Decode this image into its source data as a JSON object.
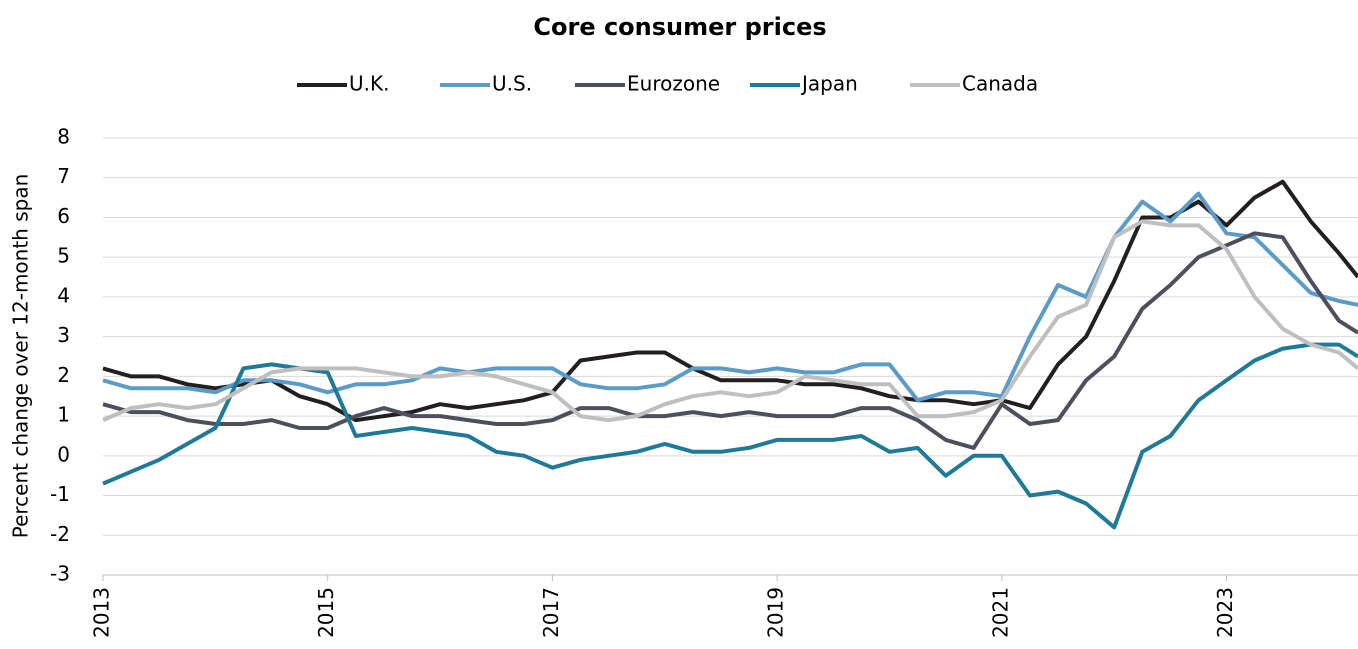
{
  "chart_data": {
    "type": "line",
    "title": "Core consumer prices",
    "y_label": "Percent change over 12-month span",
    "x": [
      2013,
      2013.25,
      2013.5,
      2013.75,
      2014,
      2014.25,
      2014.5,
      2014.75,
      2015,
      2015.25,
      2015.5,
      2015.75,
      2016,
      2016.25,
      2016.5,
      2016.75,
      2017,
      2017.25,
      2017.5,
      2017.75,
      2018,
      2018.25,
      2018.5,
      2018.75,
      2019,
      2019.25,
      2019.5,
      2019.75,
      2020,
      2020.25,
      2020.5,
      2020.75,
      2021,
      2021.25,
      2021.5,
      2021.75,
      2022,
      2022.25,
      2022.5,
      2022.75,
      2023,
      2023.25,
      2023.5,
      2023.75,
      2024,
      2024.17
    ],
    "series": [
      {
        "name": "U.K.",
        "color": "#231f20",
        "values": [
          2.2,
          2.0,
          2.0,
          1.8,
          1.7,
          1.8,
          1.9,
          1.5,
          1.3,
          0.9,
          1.0,
          1.1,
          1.3,
          1.2,
          1.3,
          1.4,
          1.6,
          2.4,
          2.5,
          2.6,
          2.6,
          2.2,
          1.9,
          1.9,
          1.9,
          1.8,
          1.8,
          1.7,
          1.5,
          1.4,
          1.4,
          1.3,
          1.4,
          1.2,
          2.3,
          3.0,
          4.4,
          6.0,
          6.0,
          6.4,
          5.8,
          6.5,
          6.9,
          5.9,
          5.1,
          4.5
        ]
      },
      {
        "name": "U.S.",
        "color": "#5b9bc8",
        "values": [
          1.9,
          1.7,
          1.7,
          1.7,
          1.6,
          1.9,
          1.9,
          1.8,
          1.6,
          1.8,
          1.8,
          1.9,
          2.2,
          2.1,
          2.2,
          2.2,
          2.2,
          1.8,
          1.7,
          1.7,
          1.8,
          2.2,
          2.2,
          2.1,
          2.2,
          2.1,
          2.1,
          2.3,
          2.3,
          1.4,
          1.6,
          1.6,
          1.5,
          3.0,
          4.3,
          4.0,
          5.5,
          6.4,
          5.9,
          6.6,
          5.6,
          5.5,
          4.8,
          4.1,
          3.9,
          3.8
        ]
      },
      {
        "name": "Eurozone",
        "color": "#4d4f5c",
        "values": [
          1.3,
          1.1,
          1.1,
          0.9,
          0.8,
          0.8,
          0.9,
          0.7,
          0.7,
          1.0,
          1.2,
          1.0,
          1.0,
          0.9,
          0.8,
          0.8,
          0.9,
          1.2,
          1.2,
          1.0,
          1.0,
          1.1,
          1.0,
          1.1,
          1.0,
          1.0,
          1.0,
          1.2,
          1.2,
          0.9,
          0.4,
          0.2,
          1.3,
          0.8,
          0.9,
          1.9,
          2.5,
          3.7,
          4.3,
          5.0,
          5.3,
          5.6,
          5.5,
          4.4,
          3.4,
          3.1
        ]
      },
      {
        "name": "Japan",
        "color": "#1f7a99",
        "values": [
          -0.7,
          -0.4,
          -0.1,
          0.3,
          0.7,
          2.2,
          2.3,
          2.2,
          2.1,
          0.5,
          0.6,
          0.7,
          0.6,
          0.5,
          0.1,
          0.0,
          -0.3,
          -0.1,
          0.0,
          0.1,
          0.3,
          0.1,
          0.1,
          0.2,
          0.4,
          0.4,
          0.4,
          0.5,
          0.1,
          0.2,
          -0.5,
          0.0,
          0.0,
          -1.0,
          -0.9,
          -1.2,
          -1.8,
          0.1,
          0.5,
          1.4,
          1.9,
          2.4,
          2.7,
          2.8,
          2.8,
          2.5
        ]
      },
      {
        "name": "Canada",
        "color": "#bfbfbf",
        "values": [
          0.9,
          1.2,
          1.3,
          1.2,
          1.3,
          1.7,
          2.1,
          2.2,
          2.2,
          2.2,
          2.1,
          2.0,
          2.0,
          2.1,
          2.0,
          1.8,
          1.6,
          1.0,
          0.9,
          1.0,
          1.3,
          1.5,
          1.6,
          1.5,
          1.6,
          2.0,
          1.9,
          1.8,
          1.8,
          1.0,
          1.0,
          1.1,
          1.4,
          2.5,
          3.5,
          3.8,
          5.5,
          5.9,
          5.8,
          5.8,
          5.2,
          4.0,
          3.2,
          2.8,
          2.6,
          2.2
        ]
      }
    ],
    "xlim": [
      2013,
      2024.17
    ],
    "xticks": [
      2013,
      2015,
      2017,
      2019,
      2021,
      2023
    ],
    "ylim": [
      -3,
      8
    ],
    "yticks": [
      -3,
      -2,
      -1,
      0,
      1,
      2,
      3,
      4,
      5,
      6,
      7,
      8
    ],
    "grid": true,
    "legend": "top"
  }
}
